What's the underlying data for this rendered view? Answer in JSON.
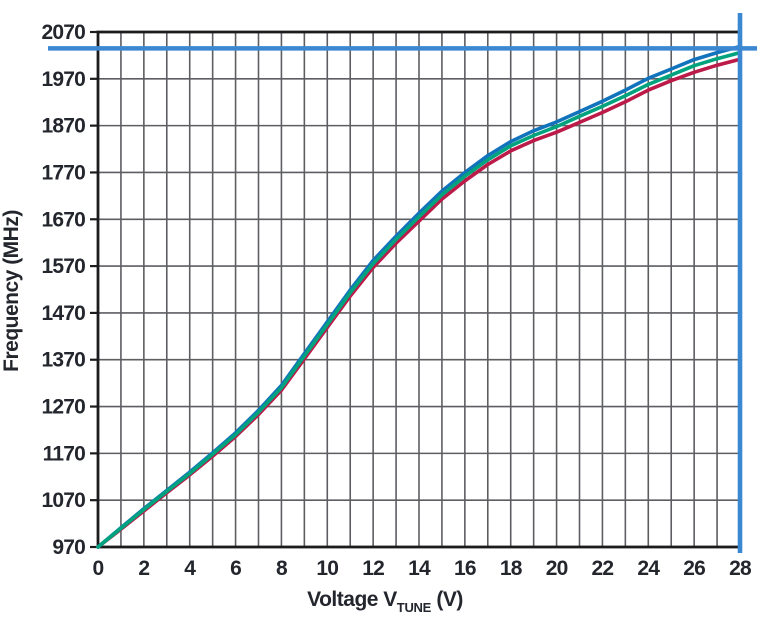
{
  "figure": {
    "background": "#ffffff",
    "text_color": "#23262d"
  },
  "chart_data": {
    "type": "line",
    "title": "",
    "xlabel": {
      "pre": "Voltage V",
      "sub": "TUNE",
      "post": " (V)"
    },
    "ylabel": "Frequency (MHz)",
    "xlim": [
      0,
      28
    ],
    "ylim": [
      970,
      2070
    ],
    "x_ticks": [
      0,
      2,
      4,
      6,
      8,
      10,
      12,
      14,
      16,
      18,
      20,
      22,
      24,
      26,
      28
    ],
    "y_ticks": [
      970,
      1070,
      1170,
      1270,
      1370,
      1470,
      1570,
      1670,
      1770,
      1870,
      1970,
      2070
    ],
    "x_minor_step": 1,
    "grid": {
      "on": true,
      "color": "#5d5e62",
      "border_color": "#1c1c1e"
    },
    "legend": "none",
    "x": [
      0,
      1,
      2,
      3,
      4,
      5,
      6,
      7,
      8,
      9,
      10,
      11,
      12,
      13,
      14,
      15,
      16,
      17,
      18,
      19,
      20,
      21,
      22,
      23,
      24,
      25,
      26,
      27,
      28
    ],
    "series": [
      {
        "name": "blue-curve",
        "color": "#1173bc",
        "values": [
          970,
          1011,
          1052,
          1091,
          1130,
          1171,
          1214,
          1262,
          1315,
          1383,
          1451,
          1519,
          1582,
          1634,
          1683,
          1730,
          1770,
          1806,
          1836,
          1859,
          1878,
          1900,
          1922,
          1946,
          1971,
          1991,
          2011,
          2026,
          2039
        ]
      },
      {
        "name": "green-curve",
        "color": "#00a37e",
        "values": [
          970,
          1010,
          1050,
          1089,
          1127,
          1168,
          1210,
          1258,
          1310,
          1378,
          1445,
          1513,
          1575,
          1627,
          1675,
          1722,
          1762,
          1797,
          1827,
          1849,
          1868,
          1890,
          1911,
          1934,
          1958,
          1978,
          1998,
          2013,
          2026
        ]
      },
      {
        "name": "red-curve",
        "color": "#bc1a48",
        "values": [
          970,
          1008,
          1047,
          1086,
          1124,
          1164,
          1206,
          1253,
          1305,
          1372,
          1439,
          1506,
          1567,
          1619,
          1666,
          1713,
          1752,
          1787,
          1816,
          1838,
          1856,
          1877,
          1898,
          1921,
          1946,
          1966,
          1984,
          1999,
          2012
        ]
      }
    ],
    "reference_lines": [
      {
        "name": "max-frequency-line",
        "orientation": "horizontal",
        "value_mhz": 2035,
        "color": "#3b87d2"
      },
      {
        "name": "max-voltage-line",
        "orientation": "vertical",
        "value_v": 28,
        "color": "#3b87d2"
      }
    ]
  }
}
